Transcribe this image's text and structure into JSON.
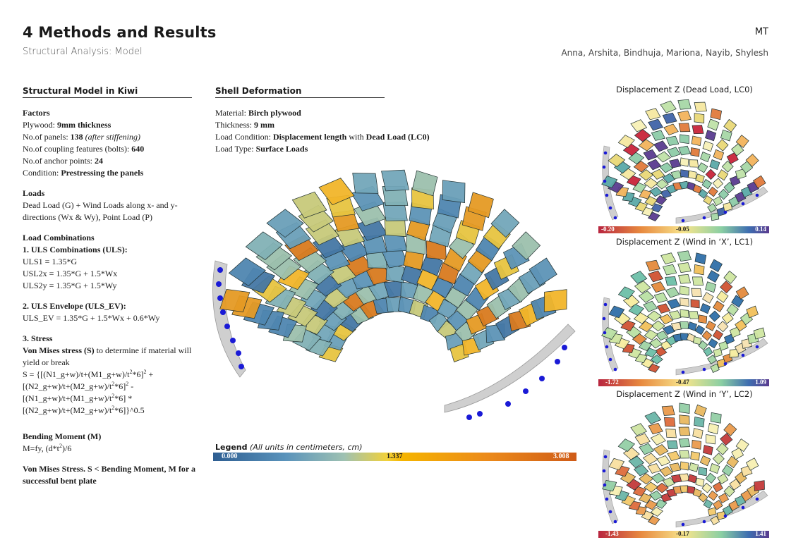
{
  "header": {
    "title": "4 Methods and Results",
    "subtitle": "Structural Analysis: Model",
    "initials": "MT",
    "authors": "Anna, Arshita, Bindhuja, Mariona, Nayib, Shylesh"
  },
  "left": {
    "heading": "Structural Model in Kiwi",
    "factors": {
      "title": "Factors",
      "plywood_label": "Plywood: ",
      "plywood_value": "9mm thickness",
      "panels_label": "No.of panels: ",
      "panels_value": "138",
      "panels_note": " (after stiffening)",
      "bolts_label": "No.of coupling features (bolts): ",
      "bolts_value": "640",
      "anchors_label": "No.of anchor points: ",
      "anchors_value": "24",
      "condition_label": "Condition: ",
      "condition_value": "Prestressing the panels"
    },
    "loads": {
      "title": "Loads",
      "text": "Dead Load (G) + Wind Loads along x- and y-directions (Wx & Wy), Point Load (P)"
    },
    "combos": {
      "title": "Load Combinations",
      "uls_title": "1. ULS Combinations (ULS):",
      "uls1": "ULS1 = 1.35*G",
      "uls2x": "USL2x = 1.35*G + 1.5*Wx",
      "uls2y": "ULS2y = 1.35*G + 1.5*Wy",
      "env_title": "2. ULS Envelope (ULS_EV):",
      "env": "ULS_EV =  1.35*G + 1.5*Wx + 0.6*Wy"
    },
    "stress": {
      "title": "3. Stress",
      "vm_bold": "Von Mises stress (S)",
      "vm_rest": " to determine if material will yield or break",
      "f1a": "S = {[(N1_g+w)/t+(M1_g+w)/t",
      "f1b": "*6]",
      "f1c": " +",
      "f2a": "[(N2_g+w)/t+(M2_g+w)/t",
      "f2b": "*6]",
      "f2c": " -",
      "f3a": "[(N1_g+w)/t+(M1_g+w)/t",
      "f3b": "*6] *",
      "f4a": "[(N2_g+w)/t+(M2_g+w)/t",
      "f4b": "*6]}^0.5",
      "sup2": "2"
    },
    "bending": {
      "title": "Bending Moment (M)",
      "formula_a": "M=fy, (d*t",
      "formula_b": ")/6",
      "conclusion": "Von Mises Stress. S < Bending Moment, M for a successful bent plate"
    }
  },
  "middle": {
    "heading": "Shell Deformation",
    "material_label": "Material: ",
    "material_value": "Birch plywood",
    "thickness_label": "Thickness: ",
    "thickness_value": "9 mm",
    "loadcond_label": "Load Condition: ",
    "loadcond_value1": "Displacement length",
    "loadcond_with": " with ",
    "loadcond_value2": "Dead Load (LC0)",
    "loadtype_label": "Load Type: ",
    "loadtype_value": "Surface Loads",
    "legend_label": "Legend",
    "legend_note": "(All units in centimeters, cm)",
    "legend_ticks": [
      "0.000",
      "1.337",
      "3.008"
    ]
  },
  "right": {
    "panels": [
      {
        "title": "Displacement Z (Dead Load, LC0)",
        "ticks": [
          "-0.20",
          "-0.05",
          "0.14"
        ]
      },
      {
        "title": "Displacement Z (Wind in ‘X’, LC1)",
        "ticks": [
          "-1.72",
          "-0.47",
          "1.09"
        ]
      },
      {
        "title": "Displacement Z (Wind in ‘Y’, LC2)",
        "ticks": [
          "-1.43",
          "-0.17",
          "1.41"
        ]
      }
    ]
  },
  "colors": {
    "blue": "#3b6fa0",
    "teal": "#7fb2b4",
    "yellow": "#f4c21a",
    "orange": "#d9731f",
    "red": "#c8243a",
    "purple": "#5a3b8f",
    "anchor": "#1a1ad6"
  }
}
